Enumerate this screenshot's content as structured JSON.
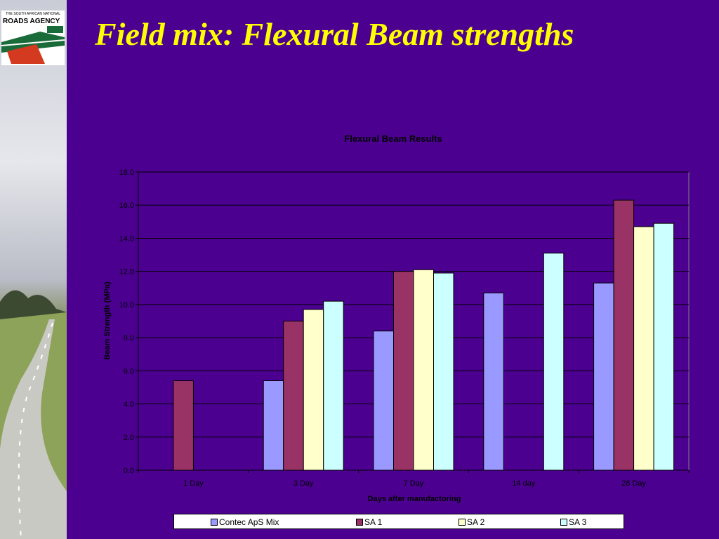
{
  "slide": {
    "title": "Field mix: Flexural Beam strengths"
  },
  "logo": {
    "line1": "THE SOUTH AFRICAN NATIONAL",
    "line2": "ROADS AGENCY",
    "icon": "roads-agency-logo"
  },
  "colors": {
    "background": "#4b0090",
    "title": "#ffff00"
  },
  "chart_data": {
    "type": "bar",
    "title": "Flexural Beam Results",
    "xlabel": "Days after manufactoring",
    "ylabel": "Beam Strength (MPa)",
    "ylim": [
      0,
      18
    ],
    "yticks": [
      "0.0",
      "2.0",
      "4.0",
      "6.0",
      "8.0",
      "10.0",
      "12.0",
      "14.0",
      "16.0",
      "18.0"
    ],
    "grid": true,
    "legend": "bottom",
    "categories": [
      "1 Day",
      "3 Day",
      "7 Day",
      "14 day",
      "28 Day"
    ],
    "series": [
      {
        "name": "Contec ApS Mix",
        "color": "#9999ff",
        "values": [
          null,
          5.4,
          8.4,
          10.7,
          11.3
        ]
      },
      {
        "name": "SA 1",
        "color": "#993366",
        "values": [
          5.4,
          9.0,
          12.0,
          null,
          16.3
        ]
      },
      {
        "name": "SA 2",
        "color": "#ffffcc",
        "values": [
          null,
          9.7,
          12.1,
          null,
          14.7
        ]
      },
      {
        "name": "SA 3",
        "color": "#ccffff",
        "values": [
          null,
          10.2,
          11.9,
          13.1,
          14.9
        ]
      }
    ]
  }
}
